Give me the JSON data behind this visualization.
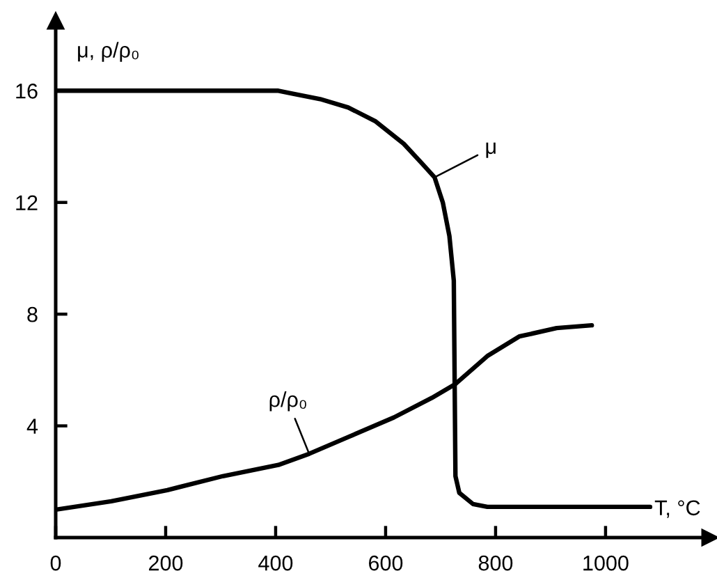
{
  "chart_data": {
    "type": "line",
    "xlabel": "T, °C",
    "ylabel": "μ, ρ/ρ₀",
    "xlim": [
      0,
      1190
    ],
    "ylim": [
      0,
      18.5
    ],
    "xticks": [
      0,
      200,
      400,
      600,
      800,
      1000
    ],
    "yticks": [
      4,
      8,
      12,
      16
    ],
    "grid": false,
    "legend": false,
    "marker": "none",
    "line_style": "solid",
    "series": [
      {
        "name": "μ",
        "color": "#000000",
        "x": [
          0,
          405,
          430,
          481,
          532,
          582,
          633,
          666,
          689,
          704,
          716,
          724,
          727,
          734,
          759,
          785,
          1081
        ],
        "values": [
          16,
          16,
          15.9,
          15.7,
          15.4,
          14.9,
          14.1,
          13.4,
          12.9,
          12.0,
          10.8,
          9.2,
          2.2,
          1.6,
          1.2,
          1.1,
          1.1
        ]
      },
      {
        "name": "ρ/ρ₀",
        "color": "#000000",
        "x": [
          0,
          101,
          203,
          304,
          405,
          461,
          532,
          615,
          684,
          727,
          785,
          843,
          911,
          975
        ],
        "values": [
          1.0,
          1.3,
          1.7,
          2.2,
          2.6,
          3.0,
          3.6,
          4.3,
          5.0,
          5.5,
          6.5,
          7.2,
          7.5,
          7.6
        ]
      }
    ]
  }
}
